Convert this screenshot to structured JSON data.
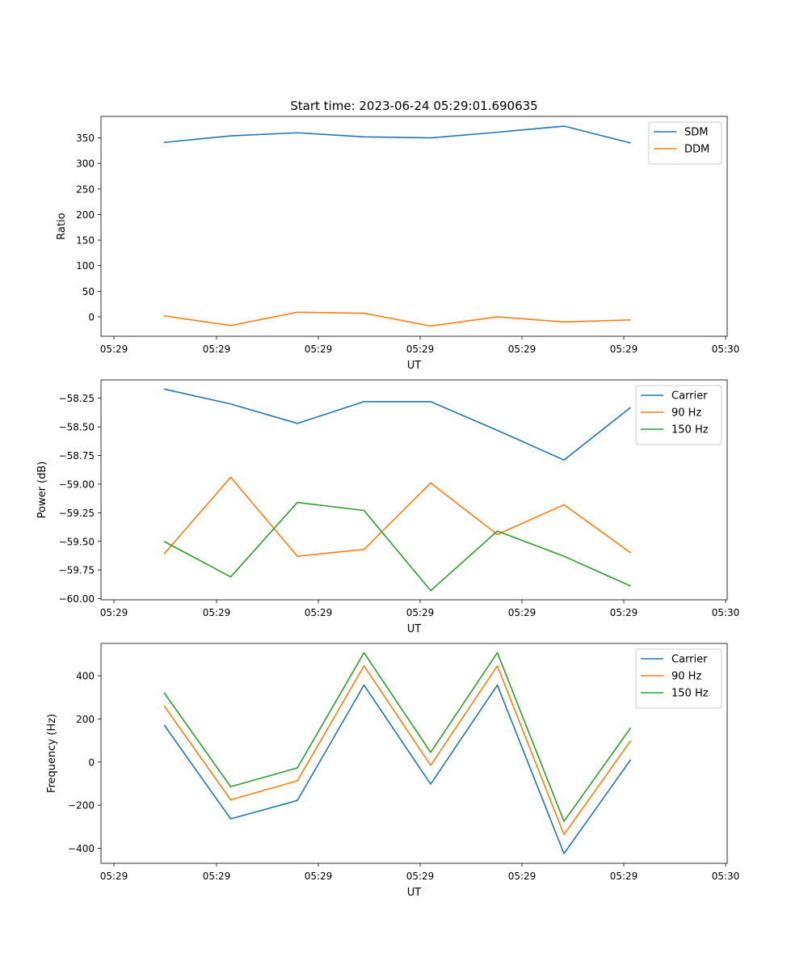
{
  "figure": {
    "title": "Start time: 2023-06-24 05:29:01.690635"
  },
  "chart_data": [
    {
      "type": "line",
      "xlabel": "UT",
      "ylabel": "Ratio",
      "x_tick_labels": [
        "05:29",
        "05:29",
        "05:29",
        "05:29",
        "05:29",
        "05:29",
        "05:30"
      ],
      "y_ticks": [
        0,
        50,
        100,
        150,
        200,
        250,
        300,
        350
      ],
      "y_tick_labels": [
        "0",
        "50",
        "100",
        "150",
        "200",
        "250",
        "300",
        "350"
      ],
      "ylim": [
        -38,
        392
      ],
      "legend": "top-right",
      "series": [
        {
          "name": "SDM",
          "color": "#1f77b4",
          "values": [
            341,
            354,
            360,
            352,
            350,
            361,
            373,
            340
          ]
        },
        {
          "name": "DDM",
          "color": "#ff7f0e",
          "values": [
            2,
            -17,
            9,
            7,
            -18,
            0,
            -10,
            -6
          ]
        }
      ]
    },
    {
      "type": "line",
      "xlabel": "UT",
      "ylabel": "Power (dB)",
      "x_tick_labels": [
        "05:29",
        "05:29",
        "05:29",
        "05:29",
        "05:29",
        "05:29",
        "05:30"
      ],
      "y_ticks": [
        -60.0,
        -59.75,
        -59.5,
        -59.25,
        -59.0,
        -58.75,
        -58.5,
        -58.25
      ],
      "y_tick_labels": [
        "−60.00",
        "−59.75",
        "−59.50",
        "−59.25",
        "−59.00",
        "−58.75",
        "−58.50",
        "−58.25"
      ],
      "ylim": [
        -60.01,
        -58.09
      ],
      "legend": "top-right",
      "series": [
        {
          "name": "Carrier",
          "color": "#1f77b4",
          "values": [
            -58.17,
            -58.3,
            -58.47,
            -58.28,
            -58.28,
            -58.53,
            -58.79,
            -58.33
          ]
        },
        {
          "name": "90 Hz",
          "color": "#ff7f0e",
          "values": [
            -59.61,
            -58.94,
            -59.63,
            -59.57,
            -58.99,
            -59.44,
            -59.18,
            -59.6
          ]
        },
        {
          "name": "150 Hz",
          "color": "#2ca02c",
          "values": [
            -59.5,
            -59.81,
            -59.16,
            -59.23,
            -59.93,
            -59.41,
            -59.63,
            -59.89
          ]
        }
      ]
    },
    {
      "type": "line",
      "xlabel": "UT",
      "ylabel": "Frequency (Hz)",
      "x_tick_labels": [
        "05:29",
        "05:29",
        "05:29",
        "05:29",
        "05:29",
        "05:29",
        "05:30"
      ],
      "y_ticks": [
        -400,
        -200,
        0,
        200,
        400
      ],
      "y_tick_labels": [
        "−400",
        "−200",
        "0",
        "200",
        "400"
      ],
      "ylim": [
        -469,
        550
      ],
      "legend": "top-right",
      "series": [
        {
          "name": "Carrier",
          "color": "#1f77b4",
          "values": [
            173,
            -263,
            -178,
            357,
            -102,
            357,
            -424,
            11
          ]
        },
        {
          "name": "90 Hz",
          "color": "#ff7f0e",
          "values": [
            261,
            -175,
            -87,
            446,
            -15,
            446,
            -336,
            99
          ]
        },
        {
          "name": "150 Hz",
          "color": "#2ca02c",
          "values": [
            322,
            -114,
            -27,
            507,
            45,
            507,
            -275,
            159
          ]
        }
      ]
    }
  ]
}
